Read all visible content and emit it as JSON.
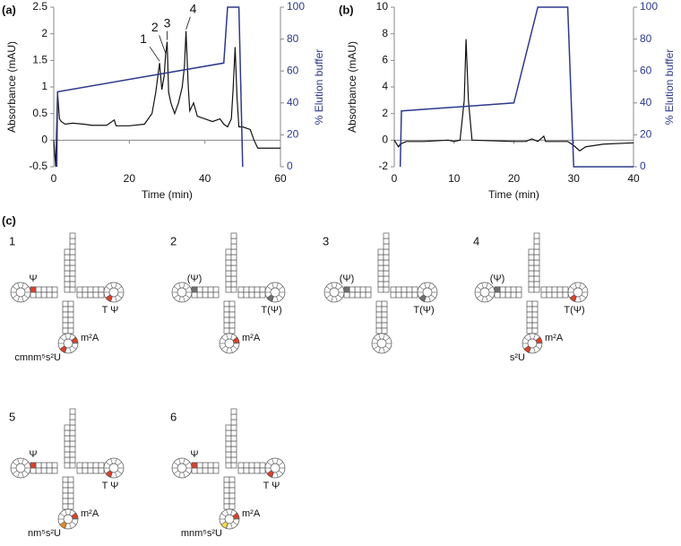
{
  "chart_data": [
    {
      "type": "line",
      "panel_label": "(a)",
      "xlabel": "Time (min)",
      "ylabel": "Absorbance (mAU)",
      "y2label": "% Elution buffer",
      "xlim": [
        0,
        60
      ],
      "xticks": [
        0,
        20,
        40,
        60
      ],
      "ylim": [
        -0.5,
        2.5
      ],
      "yticks": [
        -0.5,
        0,
        0.5,
        1,
        1.5,
        2,
        2.5
      ],
      "y2lim": [
        0,
        100
      ],
      "y2ticks": [
        0,
        20,
        40,
        60,
        80,
        100
      ],
      "series": [
        {
          "color": "#111111",
          "axis": "y",
          "x": [
            0,
            0.5,
            1,
            1.5,
            2,
            3,
            5,
            8,
            10,
            14,
            16,
            16.5,
            20,
            24,
            26,
            27,
            28,
            28.6,
            29.2,
            29.6,
            30,
            30.4,
            31,
            32,
            33,
            34,
            34.6,
            35,
            35.6,
            36,
            37,
            38,
            40,
            42,
            44,
            45,
            46,
            47,
            47.5,
            48,
            48.5,
            49,
            50,
            52,
            53,
            54,
            56,
            60
          ],
          "values": [
            0,
            -0.5,
            0.9,
            0.4,
            0.35,
            0.3,
            0.32,
            0.3,
            0.28,
            0.28,
            0.38,
            0.27,
            0.27,
            0.3,
            0.5,
            0.9,
            1.45,
            0.95,
            1.2,
            1.6,
            1.85,
            0.9,
            0.7,
            0.5,
            0.7,
            1.0,
            1.4,
            2.05,
            1.0,
            0.55,
            0.7,
            0.45,
            0.4,
            0.35,
            0.4,
            0.3,
            0.25,
            0.4,
            1.0,
            1.75,
            0.8,
            0.25,
            0.25,
            0.2,
            0.0,
            -0.15,
            -0.15,
            -0.15
          ]
        },
        {
          "color": "#2e3a8c",
          "axis": "y2",
          "x": [
            0.8,
            1,
            45,
            46,
            49,
            50
          ],
          "values": [
            0,
            47,
            65,
            100,
            100,
            0
          ]
        }
      ],
      "annotations": [
        {
          "text": "1",
          "x": 28,
          "y": 1.45
        },
        {
          "text": "2",
          "x": 29.6,
          "y": 1.6
        },
        {
          "text": "3",
          "x": 30,
          "y": 1.85
        },
        {
          "text": "4",
          "x": 35,
          "y": 2.05
        }
      ]
    },
    {
      "type": "line",
      "panel_label": "(b)",
      "xlabel": "Time (min)",
      "ylabel": "Absorbance (mAU)",
      "y2label": "% Elution buffer",
      "xlim": [
        0,
        40
      ],
      "xticks": [
        0,
        10,
        20,
        30,
        40
      ],
      "ylim": [
        -2,
        10
      ],
      "yticks": [
        -2,
        0,
        2,
        4,
        6,
        8,
        10
      ],
      "y2lim": [
        0,
        100
      ],
      "y2ticks": [
        0,
        20,
        40,
        60,
        80,
        100
      ],
      "series": [
        {
          "color": "#111111",
          "axis": "y",
          "x": [
            0,
            0.7,
            1,
            2,
            5,
            9,
            10,
            11,
            11.7,
            12,
            12.4,
            13,
            20,
            22,
            23,
            24,
            25,
            25.3,
            29,
            30,
            31,
            32,
            35,
            40
          ],
          "values": [
            0,
            -0.5,
            -0.3,
            -0.1,
            -0.1,
            0,
            -0.1,
            0,
            3,
            7.6,
            3,
            0,
            -0.1,
            -0.1,
            0.1,
            -0.1,
            0.3,
            -0.1,
            -0.1,
            -0.4,
            -0.8,
            -0.5,
            -0.3,
            -0.2
          ]
        },
        {
          "color": "#2e3a8c",
          "axis": "y2",
          "x": [
            1,
            1.2,
            20,
            24,
            29,
            30,
            40
          ],
          "values": [
            0,
            35,
            40,
            100,
            100,
            0,
            0
          ]
        }
      ],
      "annotations": []
    }
  ],
  "diagram": {
    "panel_label": "(c)",
    "trnas": [
      {
        "number": "1",
        "d_loop": {
          "text": "Ψ",
          "color": "#d9422b"
        },
        "t_loop": {
          "text": "T Ψ",
          "color": "#d9422b"
        },
        "m2a": {
          "text": "m²A",
          "color": "#d9422b"
        },
        "wobble": {
          "text": "cmnm⁵s²U",
          "color": "#d9422b"
        }
      },
      {
        "number": "2",
        "d_loop": {
          "text": "(Ψ)",
          "color": "#707070"
        },
        "t_loop": {
          "text": "T(Ψ)",
          "color": "#707070"
        },
        "m2a": {
          "text": "m²A",
          "color": "#d9422b"
        }
      },
      {
        "number": "3",
        "d_loop": {
          "text": "(Ψ)",
          "color": "#707070"
        },
        "t_loop": {
          "text": "T(Ψ)",
          "color": "#707070"
        }
      },
      {
        "number": "4",
        "d_loop": {
          "text": "(Ψ)",
          "color": "#707070"
        },
        "t_loop": {
          "text": "T(Ψ)",
          "color": "#d9422b"
        },
        "m2a": {
          "text": "m²A",
          "color": "#d9422b"
        },
        "wobble": {
          "text": "s²U",
          "color": "#d9422b"
        }
      },
      {
        "number": "5",
        "d_loop": {
          "text": "Ψ",
          "color": "#d9422b"
        },
        "t_loop": {
          "text": "T Ψ",
          "color": "#d9422b"
        },
        "m2a": {
          "text": "m²A",
          "color": "#d9422b"
        },
        "wobble": {
          "text": "nm⁵s²U",
          "color": "#e8892a"
        }
      },
      {
        "number": "6",
        "d_loop": {
          "text": "Ψ",
          "color": "#d9422b"
        },
        "t_loop": {
          "text": "T Ψ",
          "color": "#d9422b"
        },
        "m2a": {
          "text": "m²A",
          "color": "#d9422b"
        },
        "wobble": {
          "text": "mnm⁵s²U",
          "color": "#f2dc44"
        }
      }
    ]
  }
}
